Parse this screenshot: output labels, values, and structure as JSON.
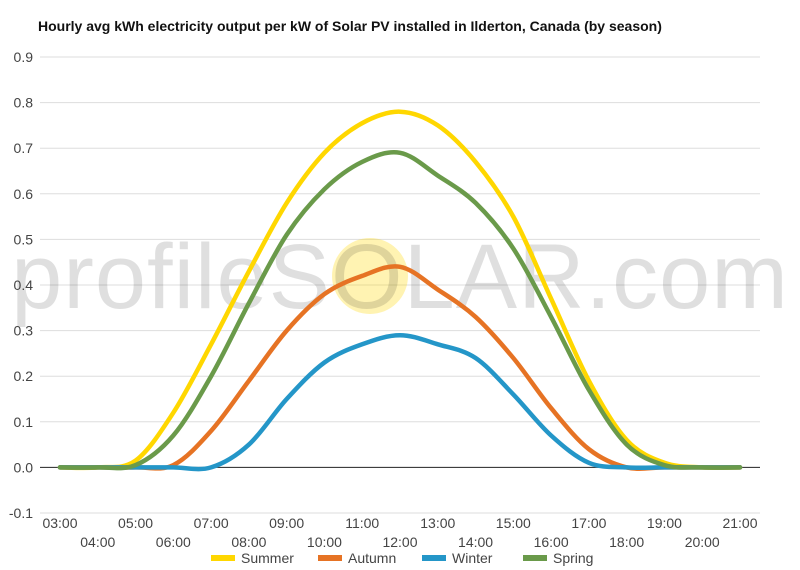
{
  "chart_data": {
    "type": "line",
    "title": "Hourly avg kWh electricity output per kW of Solar PV installed in Ilderton, Canada (by season)",
    "xlabel": "",
    "ylabel": "",
    "ylim": [
      -0.1,
      0.9
    ],
    "yticks": [
      "-0.1",
      "0.0",
      "0.1",
      "0.2",
      "0.3",
      "0.4",
      "0.5",
      "0.6",
      "0.7",
      "0.8",
      "0.9"
    ],
    "xlim": [
      3,
      21
    ],
    "xticks": [
      {
        "label": "03:00",
        "hour": 3
      },
      {
        "label": "04:00",
        "hour": 4
      },
      {
        "label": "05:00",
        "hour": 5
      },
      {
        "label": "06:00",
        "hour": 6
      },
      {
        "label": "07:00",
        "hour": 7
      },
      {
        "label": "08:00",
        "hour": 8
      },
      {
        "label": "09:00",
        "hour": 9
      },
      {
        "label": "10:00",
        "hour": 10
      },
      {
        "label": "11:00",
        "hour": 11
      },
      {
        "label": "12:00",
        "hour": 12
      },
      {
        "label": "13:00",
        "hour": 13
      },
      {
        "label": "14:00",
        "hour": 14
      },
      {
        "label": "15:00",
        "hour": 15
      },
      {
        "label": "16:00",
        "hour": 16
      },
      {
        "label": "17:00",
        "hour": 17
      },
      {
        "label": "18:00",
        "hour": 18
      },
      {
        "label": "19:00",
        "hour": 19
      },
      {
        "label": "20:00",
        "hour": 20
      },
      {
        "label": "21:00",
        "hour": 21
      }
    ],
    "x": [
      3,
      4,
      5,
      6,
      7,
      8,
      9,
      10,
      11,
      12,
      13,
      14,
      15,
      16,
      17,
      18,
      19,
      20,
      21
    ],
    "grid": true,
    "legend_position": "bottom",
    "watermark": "profileSOLAR.com",
    "series": [
      {
        "name": "Summer",
        "color": "#FFD700",
        "values": [
          0,
          0,
          0.015,
          0.12,
          0.27,
          0.43,
          0.58,
          0.69,
          0.755,
          0.78,
          0.75,
          0.67,
          0.55,
          0.37,
          0.19,
          0.06,
          0.01,
          0,
          0
        ]
      },
      {
        "name": "Autumn",
        "color": "#E67324",
        "values": [
          0,
          0,
          0,
          0.005,
          0.08,
          0.19,
          0.3,
          0.38,
          0.42,
          0.44,
          0.39,
          0.33,
          0.24,
          0.13,
          0.04,
          0,
          0,
          0,
          0
        ]
      },
      {
        "name": "Winter",
        "color": "#2496C8",
        "values": [
          0,
          0,
          0,
          0,
          0,
          0.05,
          0.15,
          0.23,
          0.27,
          0.29,
          0.27,
          0.24,
          0.16,
          0.07,
          0.01,
          0,
          0,
          0,
          0
        ]
      },
      {
        "name": "Spring",
        "color": "#6A9A4A",
        "values": [
          0,
          0,
          0.005,
          0.07,
          0.2,
          0.36,
          0.51,
          0.61,
          0.67,
          0.69,
          0.64,
          0.58,
          0.48,
          0.33,
          0.17,
          0.05,
          0.005,
          0,
          0
        ]
      }
    ]
  }
}
